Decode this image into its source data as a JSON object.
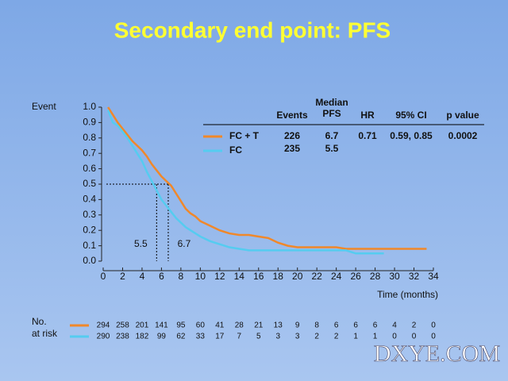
{
  "chart_data": {
    "type": "line",
    "title": "Secondary end point: PFS",
    "y_label": "Event",
    "x_label": "Time (months)",
    "xlim": [
      0,
      34
    ],
    "ylim": [
      0,
      1
    ],
    "xticks": [
      0,
      2,
      4,
      6,
      8,
      10,
      12,
      14,
      16,
      18,
      20,
      22,
      24,
      26,
      28,
      30,
      32,
      34
    ],
    "yticks": [
      {
        "value": 0,
        "label": "0.0"
      },
      0.1,
      0.2,
      0.3,
      0.4,
      0.5,
      0.6,
      0.7,
      0.8,
      0.9,
      {
        "value": 1,
        "label": "1.0"
      }
    ],
    "series": [
      {
        "name": "FC + T",
        "color": "#f0882a",
        "x": [
          0.5,
          1,
          1.5,
          2,
          2.5,
          3,
          3.5,
          4,
          4.5,
          5,
          5.5,
          6,
          6.5,
          7,
          7.5,
          8,
          8.5,
          9,
          9.5,
          10,
          11,
          12,
          13,
          14,
          15,
          16,
          17,
          18,
          19,
          20,
          24,
          25,
          30,
          33.3
        ],
        "values": [
          1,
          0.95,
          0.9,
          0.86,
          0.82,
          0.78,
          0.75,
          0.72,
          0.68,
          0.63,
          0.59,
          0.55,
          0.52,
          0.49,
          0.44,
          0.39,
          0.34,
          0.31,
          0.29,
          0.26,
          0.23,
          0.2,
          0.18,
          0.17,
          0.17,
          0.16,
          0.15,
          0.12,
          0.1,
          0.09,
          0.09,
          0.08,
          0.08,
          0.08
        ],
        "at_risk": [
          294,
          258,
          201,
          141,
          95,
          60,
          41,
          28,
          21,
          13,
          9,
          8,
          6,
          6,
          6,
          4,
          2,
          0
        ]
      },
      {
        "name": "FC",
        "color": "#55ccf0",
        "x": [
          0.5,
          1,
          1.5,
          2,
          2.5,
          3,
          3.5,
          4,
          4.5,
          5,
          5.5,
          6,
          6.5,
          7,
          7.5,
          8,
          8.5,
          9,
          9.5,
          10,
          11,
          12,
          13,
          14,
          15,
          20,
          25,
          26,
          28.9
        ],
        "values": [
          0.98,
          0.9,
          0.88,
          0.84,
          0.8,
          0.75,
          0.7,
          0.65,
          0.58,
          0.52,
          0.46,
          0.4,
          0.36,
          0.32,
          0.28,
          0.25,
          0.22,
          0.2,
          0.18,
          0.16,
          0.13,
          0.11,
          0.09,
          0.08,
          0.07,
          0.07,
          0.07,
          0.05,
          0.05
        ],
        "at_risk": [
          290,
          238,
          182,
          99,
          62,
          33,
          17,
          7,
          5,
          3,
          3,
          2,
          2,
          1,
          1,
          0,
          0,
          0
        ]
      }
    ],
    "median_lines": {
      "y": 0.5,
      "x": [
        6.7,
        5.5
      ]
    },
    "table": {
      "columns": [
        "Events",
        [
          "Median",
          "PFS"
        ],
        "HR",
        "95% CI",
        "p value"
      ],
      "rows": [
        [
          "226",
          "6.7",
          "0.71",
          "0.59, 0.85",
          "0.0002"
        ],
        [
          "235",
          "5.5"
        ]
      ]
    },
    "risk_label": [
      "No.",
      "at risk"
    ]
  },
  "watermark": "DXYE.COM"
}
